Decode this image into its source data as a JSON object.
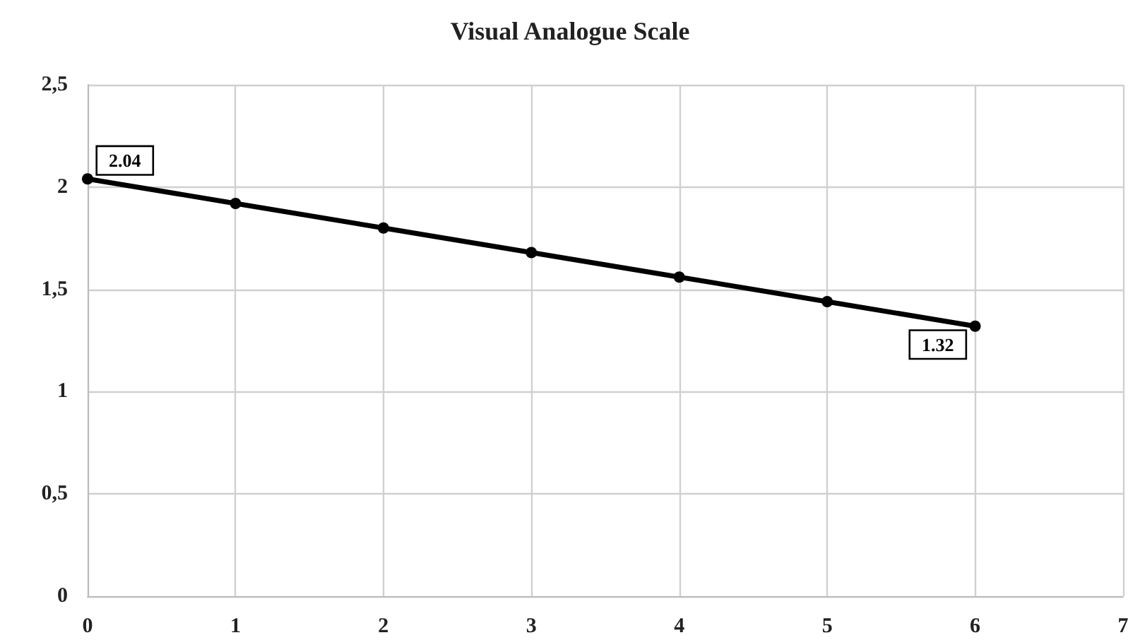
{
  "chart_data": {
    "type": "line",
    "title": "Visual Analogue Scale",
    "x": [
      0,
      1,
      2,
      3,
      4,
      5,
      6
    ],
    "series": [
      {
        "color": "#000000",
        "values": [
          2.04,
          1.92,
          1.8,
          1.68,
          1.56,
          1.44,
          1.32
        ],
        "value_labels": [
          "2.04",
          null,
          null,
          null,
          null,
          null,
          "1.32"
        ]
      }
    ],
    "xlim": [
      0,
      7
    ],
    "xticks": [
      0,
      1,
      2,
      3,
      4,
      5,
      6,
      7
    ],
    "ylim": [
      0,
      2.5
    ],
    "yticks": [
      0,
      {
        "value": 0.5,
        "label": "0,5"
      },
      1,
      {
        "value": 1.5,
        "label": "1,5"
      },
      2,
      {
        "value": 2.5,
        "label": "2,5"
      }
    ],
    "grid": true,
    "marker": "circle",
    "line_style": "solid"
  }
}
